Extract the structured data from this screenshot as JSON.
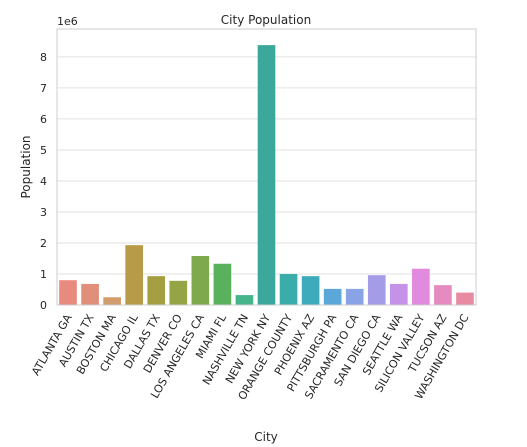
{
  "chart_data": {
    "type": "bar",
    "title": "City Population",
    "xlabel": "City",
    "ylabel": "Population",
    "y_offset_label": "1e6",
    "ylim": [
      0,
      8.9
    ],
    "y_ticks": [
      0,
      1,
      2,
      3,
      4,
      5,
      6,
      7,
      8
    ],
    "grid": "horizontal",
    "categories": [
      "ATLANTA GA",
      "AUSTIN TX",
      "BOSTON MA",
      "CHICAGO IL",
      "DALLAS TX",
      "DENVER CO",
      "LOS ANGELES CA",
      "MIAMI FL",
      "NASHVILLE TN",
      "NEW YORK NY",
      "ORANGE COUNTY",
      "PHOENIX AZ",
      "PITTSBURGH PA",
      "SACRAMENTO CA",
      "SAN DIEGO CA",
      "SEATTLE WA",
      "SILICON VALLEY",
      "TUCSON AZ",
      "WASHINGTON DC"
    ],
    "values": [
      0.8,
      0.68,
      0.25,
      1.93,
      0.93,
      0.78,
      1.58,
      1.33,
      0.32,
      8.38,
      1.0,
      0.93,
      0.52,
      0.52,
      0.96,
      0.68,
      1.17,
      0.64,
      0.4
    ],
    "colors": [
      "#e88a7d",
      "#e0907a",
      "#d29c6c",
      "#b89b48",
      "#a4a042",
      "#95a546",
      "#7eaa4d",
      "#59b05d",
      "#45b58c",
      "#3aa89a",
      "#3aaca9",
      "#3eabbd",
      "#5aa7d8",
      "#88a4e6",
      "#a59ce8",
      "#c493e8",
      "#e28ade",
      "#e68bc0",
      "#e88aa2"
    ]
  }
}
